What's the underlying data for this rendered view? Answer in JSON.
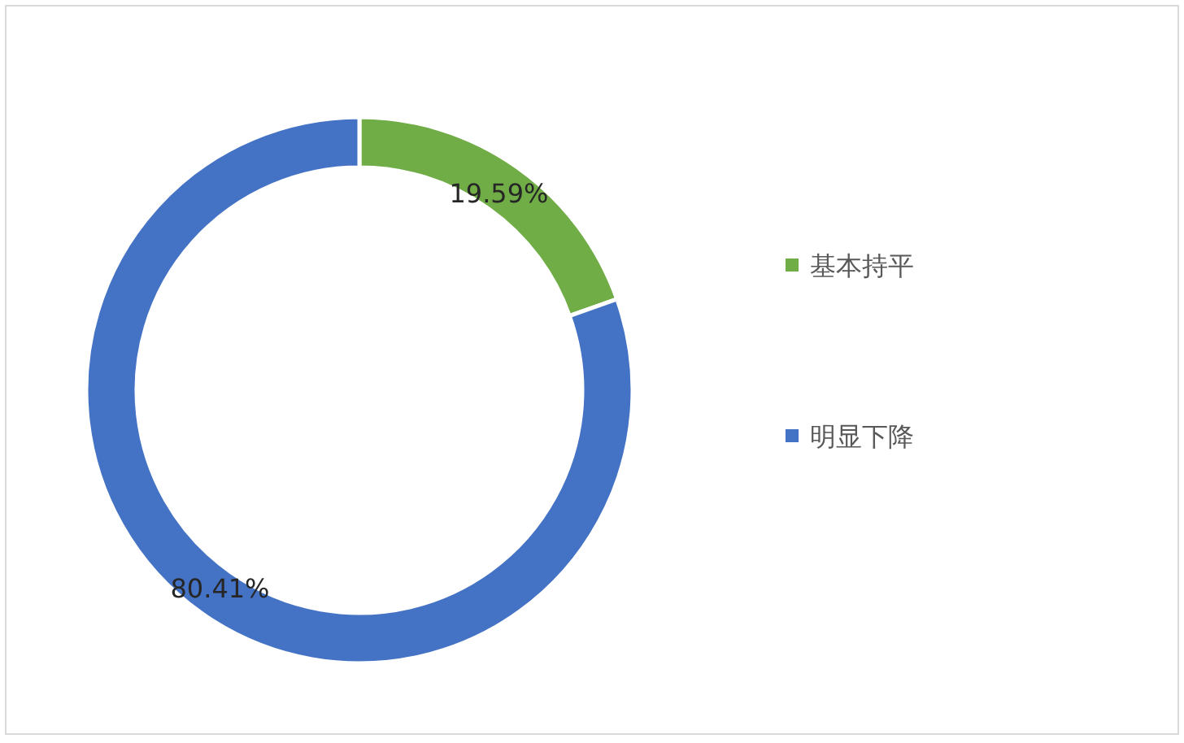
{
  "chart_data": {
    "type": "donut",
    "categories": [
      "基本持平",
      "明显下降"
    ],
    "values": [
      19.59,
      80.41
    ],
    "colors": [
      "#70ad47",
      "#4472c4"
    ],
    "value_labels": [
      "19.59%",
      "80.41%"
    ],
    "legend": "right"
  }
}
